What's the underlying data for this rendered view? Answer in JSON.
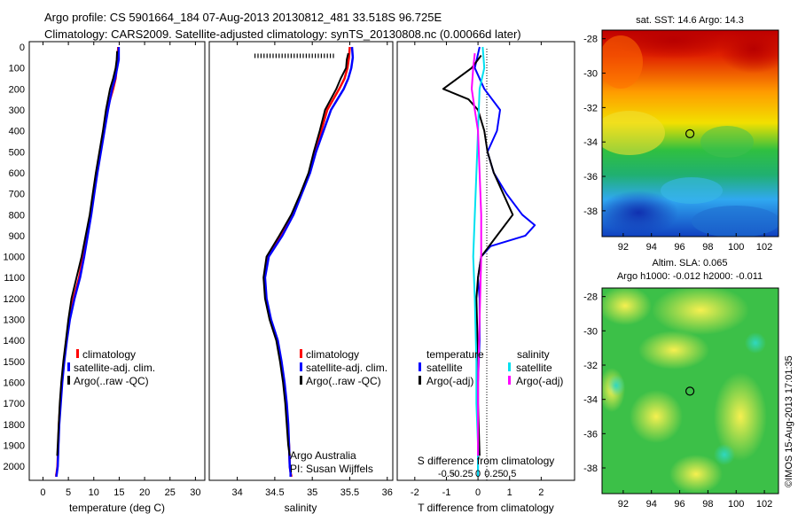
{
  "header": {
    "line1": "Argo profile: CS 5901664_184 07-Aug-2013 20130812_481 33.518S 96.725E",
    "line2": "Climatology: CARS2009. Satellite-adjusted climatology: synTS_20130808.nc (0.00066d later)"
  },
  "colors": {
    "climatology": "#ff0000",
    "satellite": "#0000ff",
    "argo": "#000000",
    "sal_satellite": "#00e0f0",
    "sal_argo": "#ff00ff"
  },
  "depth_axis": {
    "ylim": [
      0,
      2050
    ],
    "ticks": [
      "0",
      "100",
      "200",
      "300",
      "400",
      "500",
      "600",
      "700",
      "800",
      "900",
      "1000",
      "1100",
      "1200",
      "1300",
      "1400",
      "1500",
      "1600",
      "1700",
      "1800",
      "1900",
      "2000"
    ]
  },
  "chart_data": [
    {
      "type": "line",
      "xlabel": "temperature (deg C)",
      "xlim": [
        -2,
        31.5
      ],
      "xticks": [
        "0",
        "5",
        "10",
        "15",
        "20",
        "25",
        "30"
      ],
      "ylim": [
        0,
        2050
      ],
      "legend": [
        "climatology",
        "satellite-adj. clim.",
        "Argo(..raw -QC)"
      ],
      "series": [
        {
          "name": "climatology",
          "color": "#ff0000",
          "width": 2.5,
          "x": [
            14.8,
            14.7,
            14.5,
            14.3,
            13.8,
            12.6,
            11.9,
            11.2,
            10.5,
            9.9,
            9.3,
            8.6,
            7.9,
            7.1,
            6.0,
            5.2,
            4.6,
            4.1,
            3.7,
            3.4,
            3.15,
            3.0,
            2.85,
            2.7,
            2.6,
            2.6,
            2.6
          ],
          "y": [
            0,
            60,
            100,
            150,
            200,
            300,
            400,
            500,
            600,
            700,
            800,
            900,
            1000,
            1100,
            1200,
            1300,
            1400,
            1500,
            1600,
            1700,
            1800,
            1900,
            2000,
            2030,
            2040,
            2045,
            2050
          ]
        },
        {
          "name": "satellite-adj. clim.",
          "color": "#0000ff",
          "width": 2.5,
          "x": [
            14.9,
            14.9,
            14.6,
            14.2,
            13.6,
            12.8,
            12.1,
            11.4,
            10.7,
            10.1,
            9.5,
            8.8,
            8.1,
            7.3,
            6.2,
            5.3,
            4.7,
            4.2,
            3.8,
            3.5,
            3.2,
            3.05,
            2.9,
            2.75,
            2.7,
            2.65,
            2.65
          ],
          "y": [
            0,
            60,
            100,
            150,
            200,
            300,
            400,
            500,
            600,
            700,
            800,
            900,
            1000,
            1100,
            1200,
            1300,
            1400,
            1500,
            1600,
            1700,
            1800,
            1900,
            2000,
            2030,
            2040,
            2045,
            2050
          ]
        },
        {
          "name": "Argo(..raw -QC)",
          "color": "#000000",
          "width": 2,
          "x": [
            14.6,
            14.5,
            14.3,
            13.8,
            13.2,
            12.4,
            11.8,
            11.1,
            10.4,
            9.8,
            9.2,
            8.4,
            7.6,
            6.6,
            5.6,
            5.0,
            4.5,
            4.0,
            3.6,
            3.3,
            3.1,
            2.9,
            2.8
          ],
          "y": [
            20,
            60,
            100,
            150,
            200,
            300,
            400,
            500,
            600,
            700,
            800,
            900,
            1000,
            1100,
            1200,
            1300,
            1400,
            1500,
            1600,
            1700,
            1800,
            1900,
            1950
          ]
        }
      ]
    },
    {
      "type": "line",
      "xlabel": "salinity",
      "xlim": [
        33.65,
        36.05
      ],
      "xticks": [
        "34",
        "34.5",
        "35",
        "35.5",
        "36"
      ],
      "ylim": [
        0,
        2050
      ],
      "legend": [
        "climatology",
        "satellite-adj. clim.",
        "Argo(..raw -QC)"
      ],
      "annotations": [
        "Argo Australia",
        "PI: Susan Wijffels"
      ],
      "series": [
        {
          "name": "climatology",
          "color": "#ff0000",
          "width": 2.5,
          "x": [
            35.5,
            35.49,
            35.47,
            35.43,
            35.36,
            35.2,
            35.12,
            35.03,
            34.96,
            34.85,
            34.74,
            34.58,
            34.4,
            34.36,
            34.38,
            34.44,
            34.53,
            34.58,
            34.62,
            34.65,
            34.67,
            34.69,
            34.7,
            34.71,
            34.72,
            34.72
          ],
          "y": [
            0,
            50,
            100,
            150,
            200,
            300,
            400,
            500,
            600,
            700,
            800,
            900,
            1000,
            1100,
            1200,
            1300,
            1400,
            1500,
            1600,
            1700,
            1800,
            1900,
            2000,
            2030,
            2045,
            2050
          ]
        },
        {
          "name": "satellite-adj. clim.",
          "color": "#0000ff",
          "width": 2.5,
          "x": [
            35.53,
            35.54,
            35.52,
            35.48,
            35.42,
            35.25,
            35.15,
            35.05,
            34.97,
            34.86,
            34.75,
            34.6,
            34.42,
            34.37,
            34.39,
            34.45,
            34.54,
            34.59,
            34.63,
            34.66,
            34.68,
            34.69,
            34.7,
            34.71,
            34.71,
            34.71
          ],
          "y": [
            0,
            50,
            100,
            150,
            200,
            300,
            400,
            500,
            600,
            700,
            800,
            900,
            1000,
            1100,
            1200,
            1300,
            1400,
            1500,
            1600,
            1700,
            1800,
            1900,
            2000,
            2030,
            2045,
            2050
          ]
        },
        {
          "name": "Argo(..raw -QC)",
          "color": "#000000",
          "width": 2,
          "x": [
            35.48,
            35.46,
            35.45,
            35.38,
            35.32,
            35.17,
            35.1,
            35.02,
            34.95,
            34.84,
            34.72,
            34.56,
            34.39,
            34.35,
            34.37,
            34.43,
            34.52,
            34.57,
            34.61,
            34.64,
            34.66,
            34.68,
            34.7
          ],
          "y": [
            30,
            60,
            100,
            150,
            200,
            300,
            400,
            500,
            600,
            700,
            800,
            900,
            1000,
            1100,
            1200,
            1300,
            1400,
            1500,
            1600,
            1700,
            1800,
            1900,
            1950
          ]
        }
      ]
    },
    {
      "type": "line",
      "xlabel": "T difference from climatology",
      "top_xlabel": "S difference from climatology",
      "xlim": [
        -2.5,
        3.0
      ],
      "xticks": [
        "-2",
        "-1",
        "0",
        "1",
        "2"
      ],
      "top_xticks": [
        "-0.5",
        "-0.25",
        "0",
        "0.25",
        "0.5"
      ],
      "ylim": [
        0,
        2050
      ],
      "legend_titles": [
        "temperature",
        "salinity"
      ],
      "legend": [
        "satellite",
        "Argo(-adj)",
        "satellite",
        "Argo(-adj)"
      ],
      "series": [
        {
          "name": "temperature satellite",
          "color": "#0000ff",
          "width": 2,
          "x": [
            0.05,
            -0.1,
            0.2,
            0.7,
            0.6,
            0.3,
            0.5,
            0.9,
            1.4,
            1.8,
            1.5,
            0.4,
            0.1,
            0.0,
            0.05,
            0.05,
            0.0,
            0.0,
            0.0,
            0.0,
            0.0,
            0.0
          ],
          "y": [
            0,
            100,
            200,
            300,
            400,
            500,
            600,
            700,
            800,
            850,
            900,
            950,
            1000,
            1100,
            1200,
            1400,
            1600,
            1800,
            1900,
            2000,
            2030,
            2050
          ]
        },
        {
          "name": "temperature Argo(-adj)",
          "color": "#000000",
          "width": 2,
          "x": [
            0.1,
            -0.2,
            -1.1,
            -0.3,
            0.0,
            0.2,
            0.3,
            0.5,
            1.1,
            0.6,
            0.1,
            0.0,
            -0.05,
            0.0,
            0.0,
            0.05
          ],
          "y": [
            40,
            100,
            200,
            250,
            300,
            400,
            500,
            600,
            800,
            900,
            1000,
            1100,
            1200,
            1500,
            1700,
            1950
          ]
        },
        {
          "name": "salinity satellite",
          "color": "#00e0f0",
          "width": 2,
          "x": [
            0.15,
            0.2,
            0.05,
            0.0,
            -0.05,
            -0.1,
            -0.15,
            -0.1,
            -0.05,
            -0.05,
            0.0,
            0.0
          ],
          "y": [
            0,
            100,
            200,
            400,
            600,
            800,
            1000,
            1200,
            1500,
            1700,
            1900,
            2050
          ]
        },
        {
          "name": "salinity Argo(-adj)",
          "color": "#ff00ff",
          "width": 2,
          "x": [
            -0.1,
            -0.15,
            -0.2,
            -0.1,
            0.0,
            0.05,
            0.1,
            0.1,
            0.05,
            0.0,
            0.0
          ],
          "y": [
            30,
            100,
            200,
            300,
            400,
            600,
            800,
            1000,
            1300,
            1600,
            1950
          ]
        }
      ]
    },
    {
      "type": "heatmap",
      "title": "sat. SST: 14.6 Argo: 14.3",
      "xlim": [
        90.5,
        103
      ],
      "ylim": [
        -39.5,
        -27.5
      ],
      "xticks": [
        "92",
        "94",
        "96",
        "98",
        "100",
        "102"
      ],
      "yticks": [
        "-28",
        "-30",
        "-32",
        "-34",
        "-36",
        "-38"
      ],
      "marker": {
        "lon": 96.725,
        "lat": -33.518
      }
    },
    {
      "type": "heatmap",
      "title_lines": [
        "Altim. SLA: 0.065",
        "Argo h1000: -0.012 h2000: -0.011"
      ],
      "xlim": [
        90.5,
        103
      ],
      "ylim": [
        -39.5,
        -27.5
      ],
      "xticks": [
        "92",
        "94",
        "96",
        "98",
        "100",
        "102"
      ],
      "yticks": [
        "-28",
        "-30",
        "-32",
        "-34",
        "-36",
        "-38"
      ],
      "marker": {
        "lon": 96.725,
        "lat": -33.518
      }
    }
  ],
  "footer": {
    "timestamp": "©IMOS 15-Aug-2013 17:01:35"
  }
}
